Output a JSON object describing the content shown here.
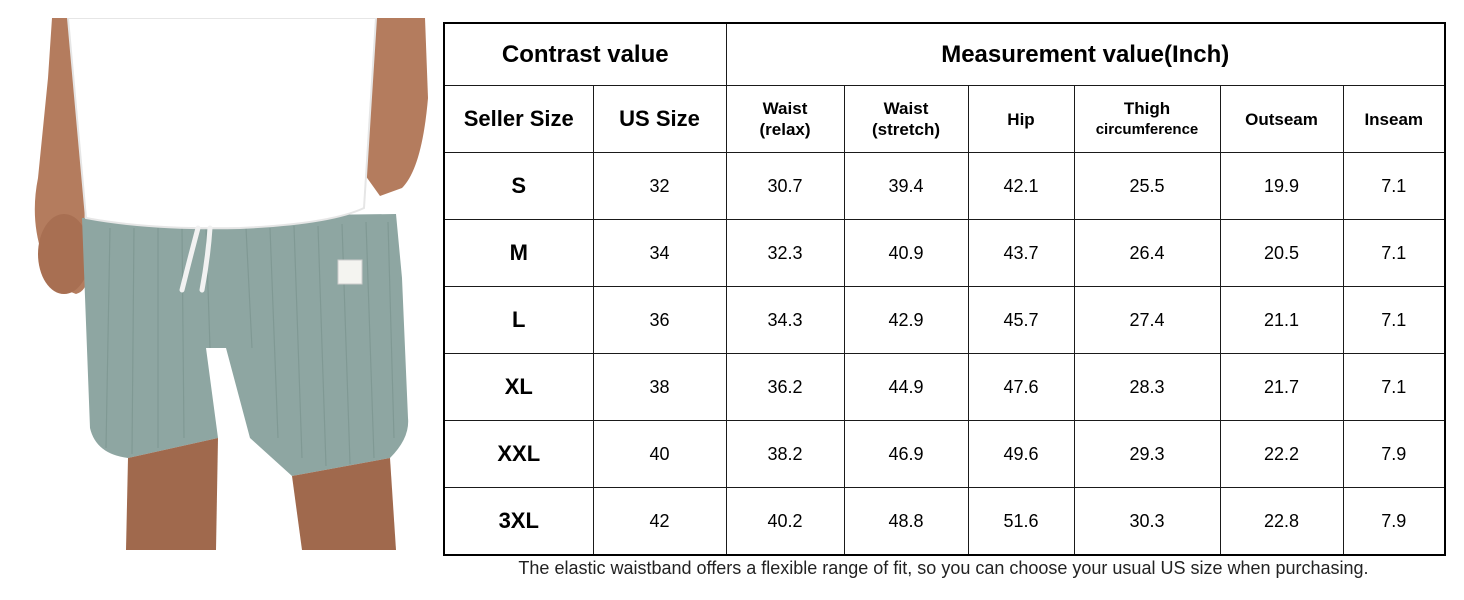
{
  "header": {
    "contrast_label": "Contrast value",
    "measurement_label": "Measurement value(Inch)"
  },
  "columns": {
    "seller_size": "Seller Size",
    "us_size": "US Size",
    "waist_relax_1": "Waist",
    "waist_relax_2": "(relax)",
    "waist_stretch_1": "Waist",
    "waist_stretch_2": "(stretch)",
    "hip": "Hip",
    "thigh_1": "Thigh",
    "thigh_2": "circumference",
    "outseam": "Outseam",
    "inseam": "Inseam"
  },
  "rows": [
    {
      "seller": "S",
      "us": "32",
      "waist_relax": "30.7",
      "waist_stretch": "39.4",
      "hip": "42.1",
      "thigh": "25.5",
      "outseam": "19.9",
      "inseam": "7.1"
    },
    {
      "seller": "M",
      "us": "34",
      "waist_relax": "32.3",
      "waist_stretch": "40.9",
      "hip": "43.7",
      "thigh": "26.4",
      "outseam": "20.5",
      "inseam": "7.1"
    },
    {
      "seller": "L",
      "us": "36",
      "waist_relax": "34.3",
      "waist_stretch": "42.9",
      "hip": "45.7",
      "thigh": "27.4",
      "outseam": "21.1",
      "inseam": "7.1"
    },
    {
      "seller": "XL",
      "us": "38",
      "waist_relax": "36.2",
      "waist_stretch": "44.9",
      "hip": "47.6",
      "thigh": "28.3",
      "outseam": "21.7",
      "inseam": "7.1"
    },
    {
      "seller": "XXL",
      "us": "40",
      "waist_relax": "38.2",
      "waist_stretch": "46.9",
      "hip": "49.6",
      "thigh": "29.3",
      "outseam": "22.2",
      "inseam": "7.9"
    },
    {
      "seller": "3XL",
      "us": "42",
      "waist_relax": "40.2",
      "waist_stretch": "48.8",
      "hip": "51.6",
      "thigh": "30.3",
      "outseam": "22.8",
      "inseam": "7.9"
    }
  ],
  "note": "The elastic waistband offers a flexible range of fit, so you can choose your usual US size when purchasing.",
  "product": {
    "shorts_color": "#8fa7a3",
    "shirt_color": "#ffffff",
    "skin_color": "#b07a5c"
  }
}
